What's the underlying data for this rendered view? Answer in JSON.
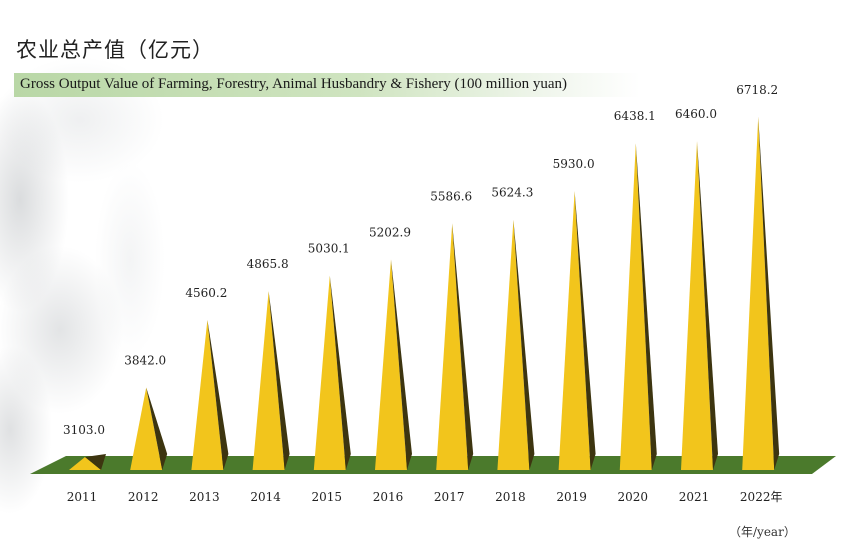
{
  "title": "农业总产值（亿元）",
  "subtitle": "Gross Output Value of Farming, Forestry, Animal Husbandry & Fishery (100 million yuan)",
  "unit_label": "（年/year）",
  "colors": {
    "spike_light": "#f2c51c",
    "spike_dark": "#3d3510",
    "ground": "#4b7a2c",
    "title_band": "#c3deb0"
  },
  "chart_data": {
    "type": "bar",
    "categories": [
      "2011",
      "2012",
      "2013",
      "2014",
      "2015",
      "2016",
      "2017",
      "2018",
      "2019",
      "2020",
      "2021",
      "2022年"
    ],
    "values": [
      3103.0,
      3842.0,
      4560.2,
      4865.8,
      5030.1,
      5202.9,
      5586.6,
      5624.3,
      5930.0,
      6438.1,
      6460.0,
      6718.2
    ],
    "value_labels": [
      "3103.0",
      "3842.0",
      "4560.2",
      "4865.8",
      "5030.1",
      "5202.9",
      "5586.6",
      "5624.3",
      "5930.0",
      "6438.1",
      "6460.0",
      "6718.2"
    ],
    "title": "农业总产值（亿元）",
    "subtitle": "Gross Output Value of Farming, Forestry, Animal Husbandry & Fishery (100 million yuan)",
    "xlabel": "（年/year）",
    "ylabel": "",
    "grid": false,
    "legend": "none"
  }
}
